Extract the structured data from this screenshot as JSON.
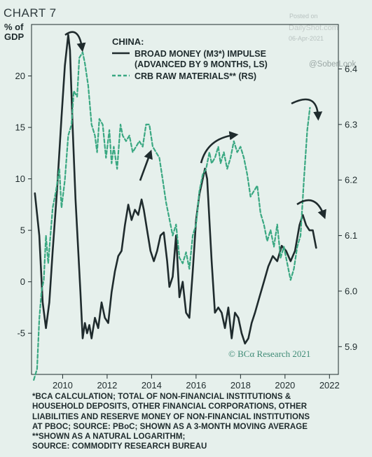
{
  "header": {
    "chart_label": "CHART 7"
  },
  "watermark": {
    "posted_on": "Posted on",
    "site": "DailyShot.com",
    "date": "06-Apr-2021",
    "handle": "@SoberLook"
  },
  "credit": "© BCα Research 2021",
  "footnotes": [
    "*BCA CALCULATION; TOTAL OF NON-FINANCIAL INSTITUTIONS &",
    "HOUSEHOLD DEPOSITS, OTHER FINANCIAL CORPORATIONS, OTHER",
    "LIABILITIES AND RESERVE MONEY OF NON-FINANCIAL INSTITUTIONS",
    "AT PBOC; SOURCE: PBoC; SHOWN AS A 3-MONTH MOVING AVERAGE",
    "**SHOWN AS A NATURAL LOGARITHM;",
    "SOURCE: COMMODITY RESEARCH BUREAU"
  ],
  "colors": {
    "background": "#e6f0ec",
    "series_money": "#1f2b2d",
    "series_crb": "#3aa882"
  },
  "chart_data": {
    "type": "line",
    "title": "CHINA:",
    "y_left_label": [
      "% of",
      "GDP"
    ],
    "ylim_left": [
      -9,
      25
    ],
    "ylim_right": [
      5.85,
      6.48
    ],
    "xlim": [
      2008.6,
      2022.4
    ],
    "x_ticks": [
      2010,
      2012,
      2014,
      2016,
      2018,
      2020,
      2022
    ],
    "y_left_ticks": [
      -5,
      0,
      5,
      10,
      15,
      20
    ],
    "y_right_ticks": [
      5.9,
      6.0,
      6.1,
      6.2,
      6.3,
      6.4
    ],
    "grid": false,
    "legend_position": "top-center",
    "series": [
      {
        "name": "BROAD MONEY (M3*) IMPULSE",
        "name_line2": "(ADVANCED BY 9 MONTHS, LS)",
        "axis": "left",
        "style": "solid",
        "points": [
          [
            2008.75,
            8.6
          ],
          [
            2008.95,
            4.5
          ],
          [
            2009.1,
            -2.0
          ],
          [
            2009.25,
            -4.5
          ],
          [
            2009.4,
            -2.0
          ],
          [
            2009.55,
            3.0
          ],
          [
            2009.75,
            9.0
          ],
          [
            2009.95,
            16.0
          ],
          [
            2010.1,
            21.0
          ],
          [
            2010.25,
            24.0
          ],
          [
            2010.33,
            22.5
          ],
          [
            2010.45,
            15.0
          ],
          [
            2010.58,
            8.0
          ],
          [
            2010.7,
            3.0
          ],
          [
            2010.8,
            -1.0
          ],
          [
            2010.9,
            -5.5
          ],
          [
            2011.0,
            -4.0
          ],
          [
            2011.1,
            -5.0
          ],
          [
            2011.2,
            -4.2
          ],
          [
            2011.3,
            -5.5
          ],
          [
            2011.45,
            -3.5
          ],
          [
            2011.6,
            -4.5
          ],
          [
            2011.75,
            -2.0
          ],
          [
            2011.9,
            -3.5
          ],
          [
            2012.05,
            -4.0
          ],
          [
            2012.2,
            -1.0
          ],
          [
            2012.35,
            1.0
          ],
          [
            2012.5,
            2.5
          ],
          [
            2012.65,
            3.0
          ],
          [
            2012.8,
            5.5
          ],
          [
            2012.95,
            7.5
          ],
          [
            2013.1,
            6.0
          ],
          [
            2013.25,
            7.0
          ],
          [
            2013.4,
            6.5
          ],
          [
            2013.55,
            8.0
          ],
          [
            2013.65,
            7.0
          ],
          [
            2013.8,
            5.0
          ],
          [
            2013.95,
            3.0
          ],
          [
            2014.1,
            2.0
          ],
          [
            2014.25,
            3.0
          ],
          [
            2014.4,
            4.5
          ],
          [
            2014.55,
            4.8
          ],
          [
            2014.7,
            2.0
          ],
          [
            2014.8,
            -0.5
          ],
          [
            2014.95,
            0.5
          ],
          [
            2015.1,
            4.5
          ],
          [
            2015.25,
            -1.5
          ],
          [
            2015.4,
            0.0
          ],
          [
            2015.55,
            -3.0
          ],
          [
            2015.7,
            -3.5
          ],
          [
            2015.85,
            1.0
          ],
          [
            2016.0,
            6.0
          ],
          [
            2016.15,
            8.5
          ],
          [
            2016.3,
            10.0
          ],
          [
            2016.4,
            11.0
          ],
          [
            2016.5,
            10.0
          ],
          [
            2016.6,
            6.0
          ],
          [
            2016.7,
            2.0
          ],
          [
            2016.85,
            -3.0
          ],
          [
            2017.0,
            -2.5
          ],
          [
            2017.15,
            -3.0
          ],
          [
            2017.3,
            -4.5
          ],
          [
            2017.45,
            -2.5
          ],
          [
            2017.6,
            -5.5
          ],
          [
            2017.75,
            -3.0
          ],
          [
            2017.9,
            -3.5
          ],
          [
            2018.05,
            -5.0
          ],
          [
            2018.2,
            -6.0
          ],
          [
            2018.35,
            -5.5
          ],
          [
            2018.5,
            -4.0
          ],
          [
            2018.65,
            -3.0
          ],
          [
            2018.85,
            -1.5
          ],
          [
            2019.05,
            0.0
          ],
          [
            2019.25,
            1.5
          ],
          [
            2019.45,
            2.5
          ],
          [
            2019.65,
            2.0
          ],
          [
            2019.85,
            3.5
          ],
          [
            2020.05,
            3.0
          ],
          [
            2020.25,
            2.0
          ],
          [
            2020.45,
            3.0
          ],
          [
            2020.65,
            5.5
          ],
          [
            2020.8,
            6.5
          ],
          [
            2020.95,
            5.5
          ],
          [
            2021.1,
            5.0
          ],
          [
            2021.25,
            5.0
          ],
          [
            2021.4,
            3.3
          ]
        ]
      },
      {
        "name": "CRB RAW MATERIALS** (RS)",
        "axis": "right",
        "style": "dashed",
        "points": [
          [
            2008.7,
            5.84
          ],
          [
            2008.85,
            5.86
          ],
          [
            2008.95,
            5.95
          ],
          [
            2009.05,
            6.0
          ],
          [
            2009.15,
            6.02
          ],
          [
            2009.25,
            6.1
          ],
          [
            2009.35,
            6.05
          ],
          [
            2009.45,
            6.1
          ],
          [
            2009.55,
            6.15
          ],
          [
            2009.7,
            6.18
          ],
          [
            2009.85,
            6.22
          ],
          [
            2009.95,
            6.15
          ],
          [
            2010.1,
            6.2
          ],
          [
            2010.25,
            6.28
          ],
          [
            2010.4,
            6.3
          ],
          [
            2010.5,
            6.36
          ],
          [
            2010.65,
            6.35
          ],
          [
            2010.75,
            6.42
          ],
          [
            2010.9,
            6.43
          ],
          [
            2011.0,
            6.41
          ],
          [
            2011.15,
            6.37
          ],
          [
            2011.3,
            6.3
          ],
          [
            2011.45,
            6.28
          ],
          [
            2011.55,
            6.25
          ],
          [
            2011.65,
            6.31
          ],
          [
            2011.8,
            6.3
          ],
          [
            2011.95,
            6.24
          ],
          [
            2012.1,
            6.29
          ],
          [
            2012.2,
            6.23
          ],
          [
            2012.3,
            6.26
          ],
          [
            2012.45,
            6.22
          ],
          [
            2012.6,
            6.3
          ],
          [
            2012.7,
            6.28
          ],
          [
            2012.85,
            6.27
          ],
          [
            2013.0,
            6.28
          ],
          [
            2013.15,
            6.25
          ],
          [
            2013.3,
            6.26
          ],
          [
            2013.45,
            6.27
          ],
          [
            2013.6,
            6.26
          ],
          [
            2013.75,
            6.3
          ],
          [
            2013.9,
            6.3
          ],
          [
            2014.05,
            6.26
          ],
          [
            2014.2,
            6.25
          ],
          [
            2014.35,
            6.24
          ],
          [
            2014.5,
            6.2
          ],
          [
            2014.65,
            6.16
          ],
          [
            2014.8,
            6.13
          ],
          [
            2014.95,
            6.1
          ],
          [
            2015.1,
            6.12
          ],
          [
            2015.25,
            6.06
          ],
          [
            2015.4,
            6.05
          ],
          [
            2015.55,
            6.07
          ],
          [
            2015.7,
            6.04
          ],
          [
            2015.85,
            6.1
          ],
          [
            2016.0,
            6.12
          ],
          [
            2016.15,
            6.18
          ],
          [
            2016.3,
            6.21
          ],
          [
            2016.45,
            6.22
          ],
          [
            2016.6,
            6.25
          ],
          [
            2016.7,
            6.23
          ],
          [
            2016.85,
            6.24
          ],
          [
            2017.0,
            6.26
          ],
          [
            2017.1,
            6.23
          ],
          [
            2017.25,
            6.25
          ],
          [
            2017.4,
            6.22
          ],
          [
            2017.55,
            6.24
          ],
          [
            2017.7,
            6.27
          ],
          [
            2017.85,
            6.25
          ],
          [
            2018.0,
            6.26
          ],
          [
            2018.15,
            6.24
          ],
          [
            2018.3,
            6.21
          ],
          [
            2018.45,
            6.17
          ],
          [
            2018.6,
            6.18
          ],
          [
            2018.75,
            6.19
          ],
          [
            2018.9,
            6.14
          ],
          [
            2019.05,
            6.12
          ],
          [
            2019.2,
            6.09
          ],
          [
            2019.35,
            6.11
          ],
          [
            2019.5,
            6.08
          ],
          [
            2019.65,
            6.12
          ],
          [
            2019.8,
            6.06
          ],
          [
            2019.95,
            6.08
          ],
          [
            2020.1,
            6.05
          ],
          [
            2020.25,
            6.02
          ],
          [
            2020.4,
            6.04
          ],
          [
            2020.55,
            6.08
          ],
          [
            2020.7,
            6.1
          ],
          [
            2020.85,
            6.2
          ],
          [
            2021.0,
            6.29
          ],
          [
            2021.12,
            6.33
          ]
        ]
      }
    ]
  }
}
